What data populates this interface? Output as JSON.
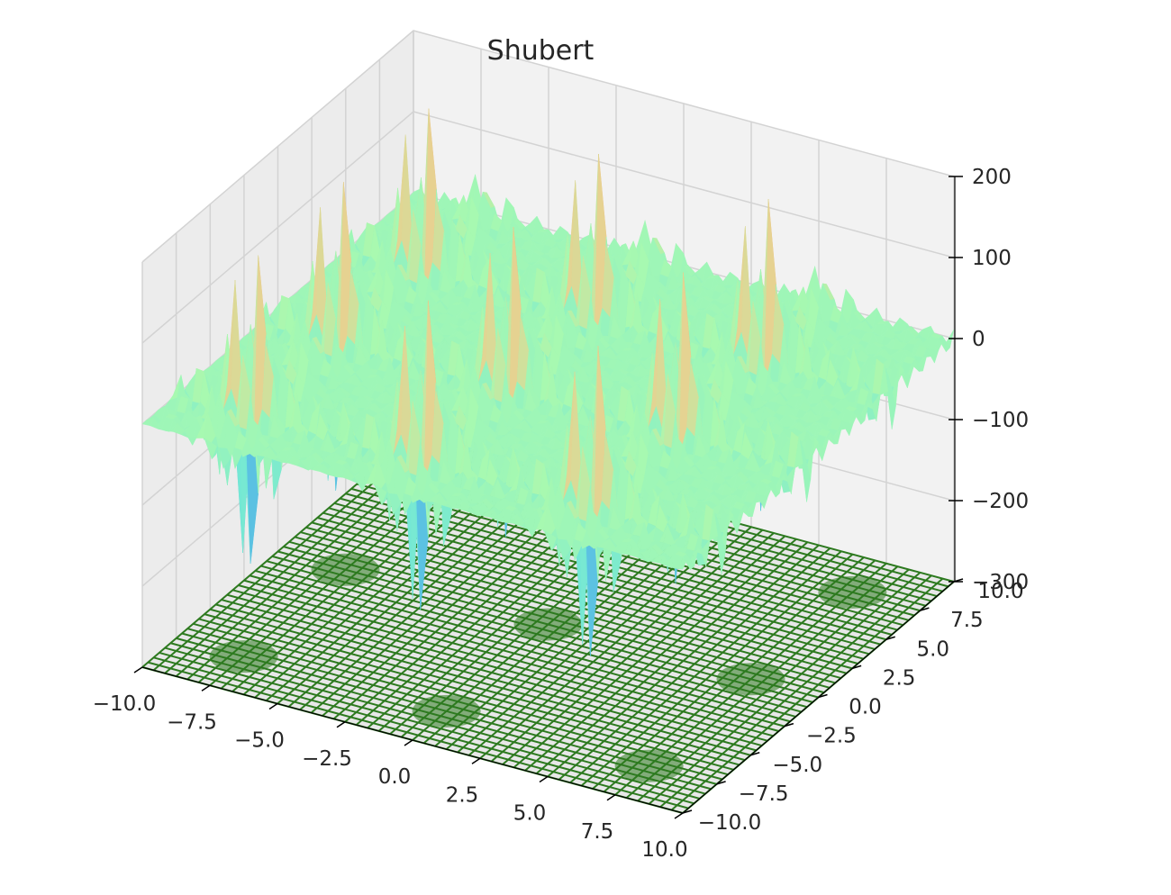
{
  "chart_data": {
    "type": "surface3d",
    "title": "Shubert",
    "function": "Shubert",
    "xlabel": "",
    "ylabel": "",
    "zlabel": "",
    "xlim": [
      -10,
      10
    ],
    "ylim": [
      -10,
      10
    ],
    "zlim": [
      -300,
      200
    ],
    "x_ticks": [
      "−10.0",
      "−7.5",
      "−5.0",
      "−2.5",
      "0.0",
      "2.5",
      "5.0",
      "7.5",
      "10.0"
    ],
    "y_ticks": [
      "−10.0",
      "−7.5",
      "−5.0",
      "−2.5",
      "0.0",
      "2.5",
      "5.0",
      "7.5",
      "10.0"
    ],
    "z_ticks": [
      "−300",
      "−200",
      "−100",
      "0",
      "100",
      "200"
    ],
    "x_tick_values": [
      -10,
      -7.5,
      -5,
      -2.5,
      0,
      2.5,
      5,
      7.5,
      10
    ],
    "y_tick_values": [
      -10,
      -7.5,
      -5,
      -2.5,
      0,
      2.5,
      5,
      7.5,
      10
    ],
    "z_tick_values": [
      -300,
      -200,
      -100,
      0,
      100,
      200
    ],
    "grid": true,
    "surface_colormap": "rainbow",
    "surface_colors": [
      "#5a2de8",
      "#3f8ef0",
      "#6fe6d8",
      "#a8f9b0",
      "#f4c98a",
      "#ef8a5a",
      "#dd2e22"
    ],
    "floor_wireframe": {
      "z": -300,
      "color": "#2d7a1f"
    },
    "pane_color": "#f2f2f2",
    "grid_color": "#d3d3d3"
  }
}
